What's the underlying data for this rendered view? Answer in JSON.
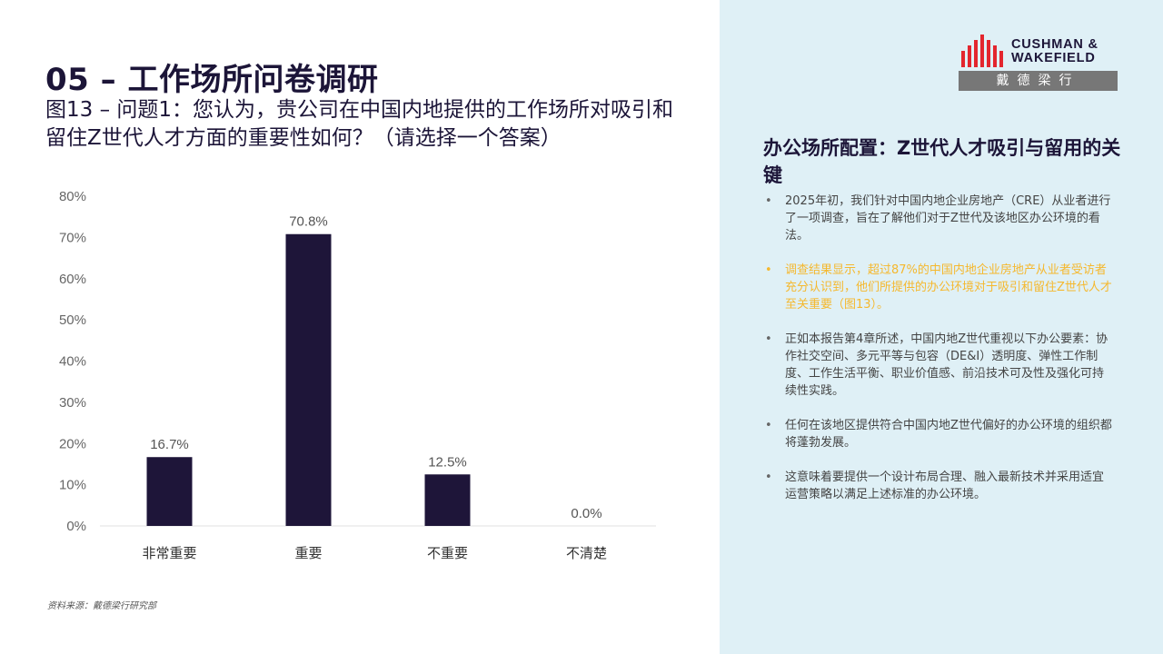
{
  "header": {
    "section_title": "05 – 工作场所问卷调研",
    "subtitle": "图13 – 问题1：您认为，贵公司在中国内地提供的工作场所对吸引和留住Z世代人才方面的重要性如何？（请选择一个答案）"
  },
  "chart_data": {
    "type": "bar",
    "categories": [
      "非常重要",
      "重要",
      "不重要",
      "不清楚"
    ],
    "values": [
      16.7,
      70.8,
      12.5,
      0.0
    ],
    "data_labels": [
      "16.7%",
      "70.8%",
      "12.5%",
      "0.0%"
    ],
    "y_ticks": [
      "0%",
      "10%",
      "20%",
      "30%",
      "40%",
      "50%",
      "60%",
      "70%",
      "80%"
    ],
    "ylim": [
      0,
      80
    ],
    "grid": false,
    "bar_color": "#1e1539"
  },
  "source": "资料来源：戴德梁行研究部",
  "logo": {
    "line1": "CUSHMAN &",
    "line2": "WAKEFIELD",
    "chinese": "戴德梁行",
    "bar_color": "#e3262e"
  },
  "sidebar": {
    "heading": "办公场所配置：Z世代人才吸引与留用的关键",
    "bullets": [
      {
        "text": "2025年初，我们针对中国内地企业房地产（CRE）从业者进行了一项调查，旨在了解他们对于Z世代及该地区办公环境的看法。",
        "highlight": false
      },
      {
        "text": "调查结果显示，超过87%的中国内地企业房地产从业者受访者充分认识到，他们所提供的办公环境对于吸引和留住Z世代人才至关重要（图13）。",
        "highlight": true
      },
      {
        "text": "正如本报告第4章所述，中国内地Z世代重视以下办公要素：协作社交空间、多元平等与包容（DE&I）透明度、弹性工作制度、工作生活平衡、职业价值感、前沿技术可及性及强化可持续性实践。",
        "highlight": false
      },
      {
        "text": "任何在该地区提供符合中国内地Z世代偏好的办公环境的组织都将蓬勃发展。",
        "highlight": false
      },
      {
        "text": "这意味着要提供一个设计布局合理、融入最新技术并采用适宜运营策略以满足上述标准的办公环境。",
        "highlight": false
      }
    ],
    "highlight_color": "#f5b82e"
  }
}
